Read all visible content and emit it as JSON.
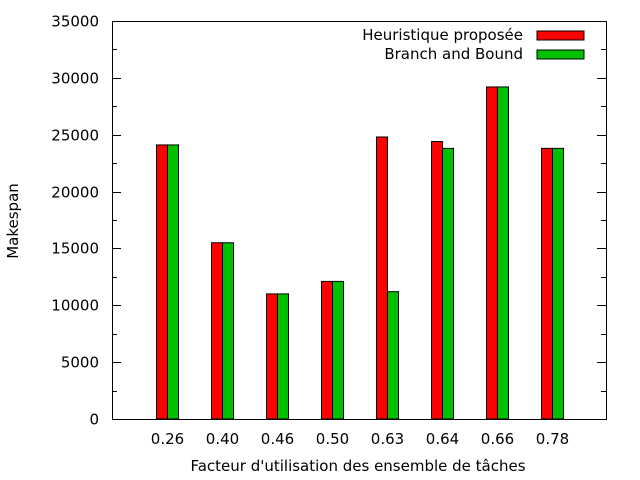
{
  "chart_data": {
    "type": "bar",
    "title": "",
    "xlabel": "Facteur d'utilisation des ensemble de tâches",
    "ylabel": "Makespan",
    "categories": [
      "0.26",
      "0.40",
      "0.46",
      "0.50",
      "0.63",
      "0.64",
      "0.66",
      "0.78"
    ],
    "series": [
      {
        "name": "Heuristique proposée",
        "color": "#ff0000",
        "values": [
          24100,
          15500,
          11000,
          12100,
          24800,
          24400,
          29200,
          23800
        ]
      },
      {
        "name": "Branch and Bound",
        "color": "#00c000",
        "values": [
          24100,
          15500,
          11000,
          12100,
          11200,
          23800,
          29200,
          23800
        ]
      }
    ],
    "ylim": [
      0,
      35000
    ],
    "yticks": [
      "0",
      "5000",
      "10000",
      "15000",
      "20000",
      "25000",
      "30000",
      "35000"
    ],
    "grid": false,
    "legend_position": "top-right"
  }
}
